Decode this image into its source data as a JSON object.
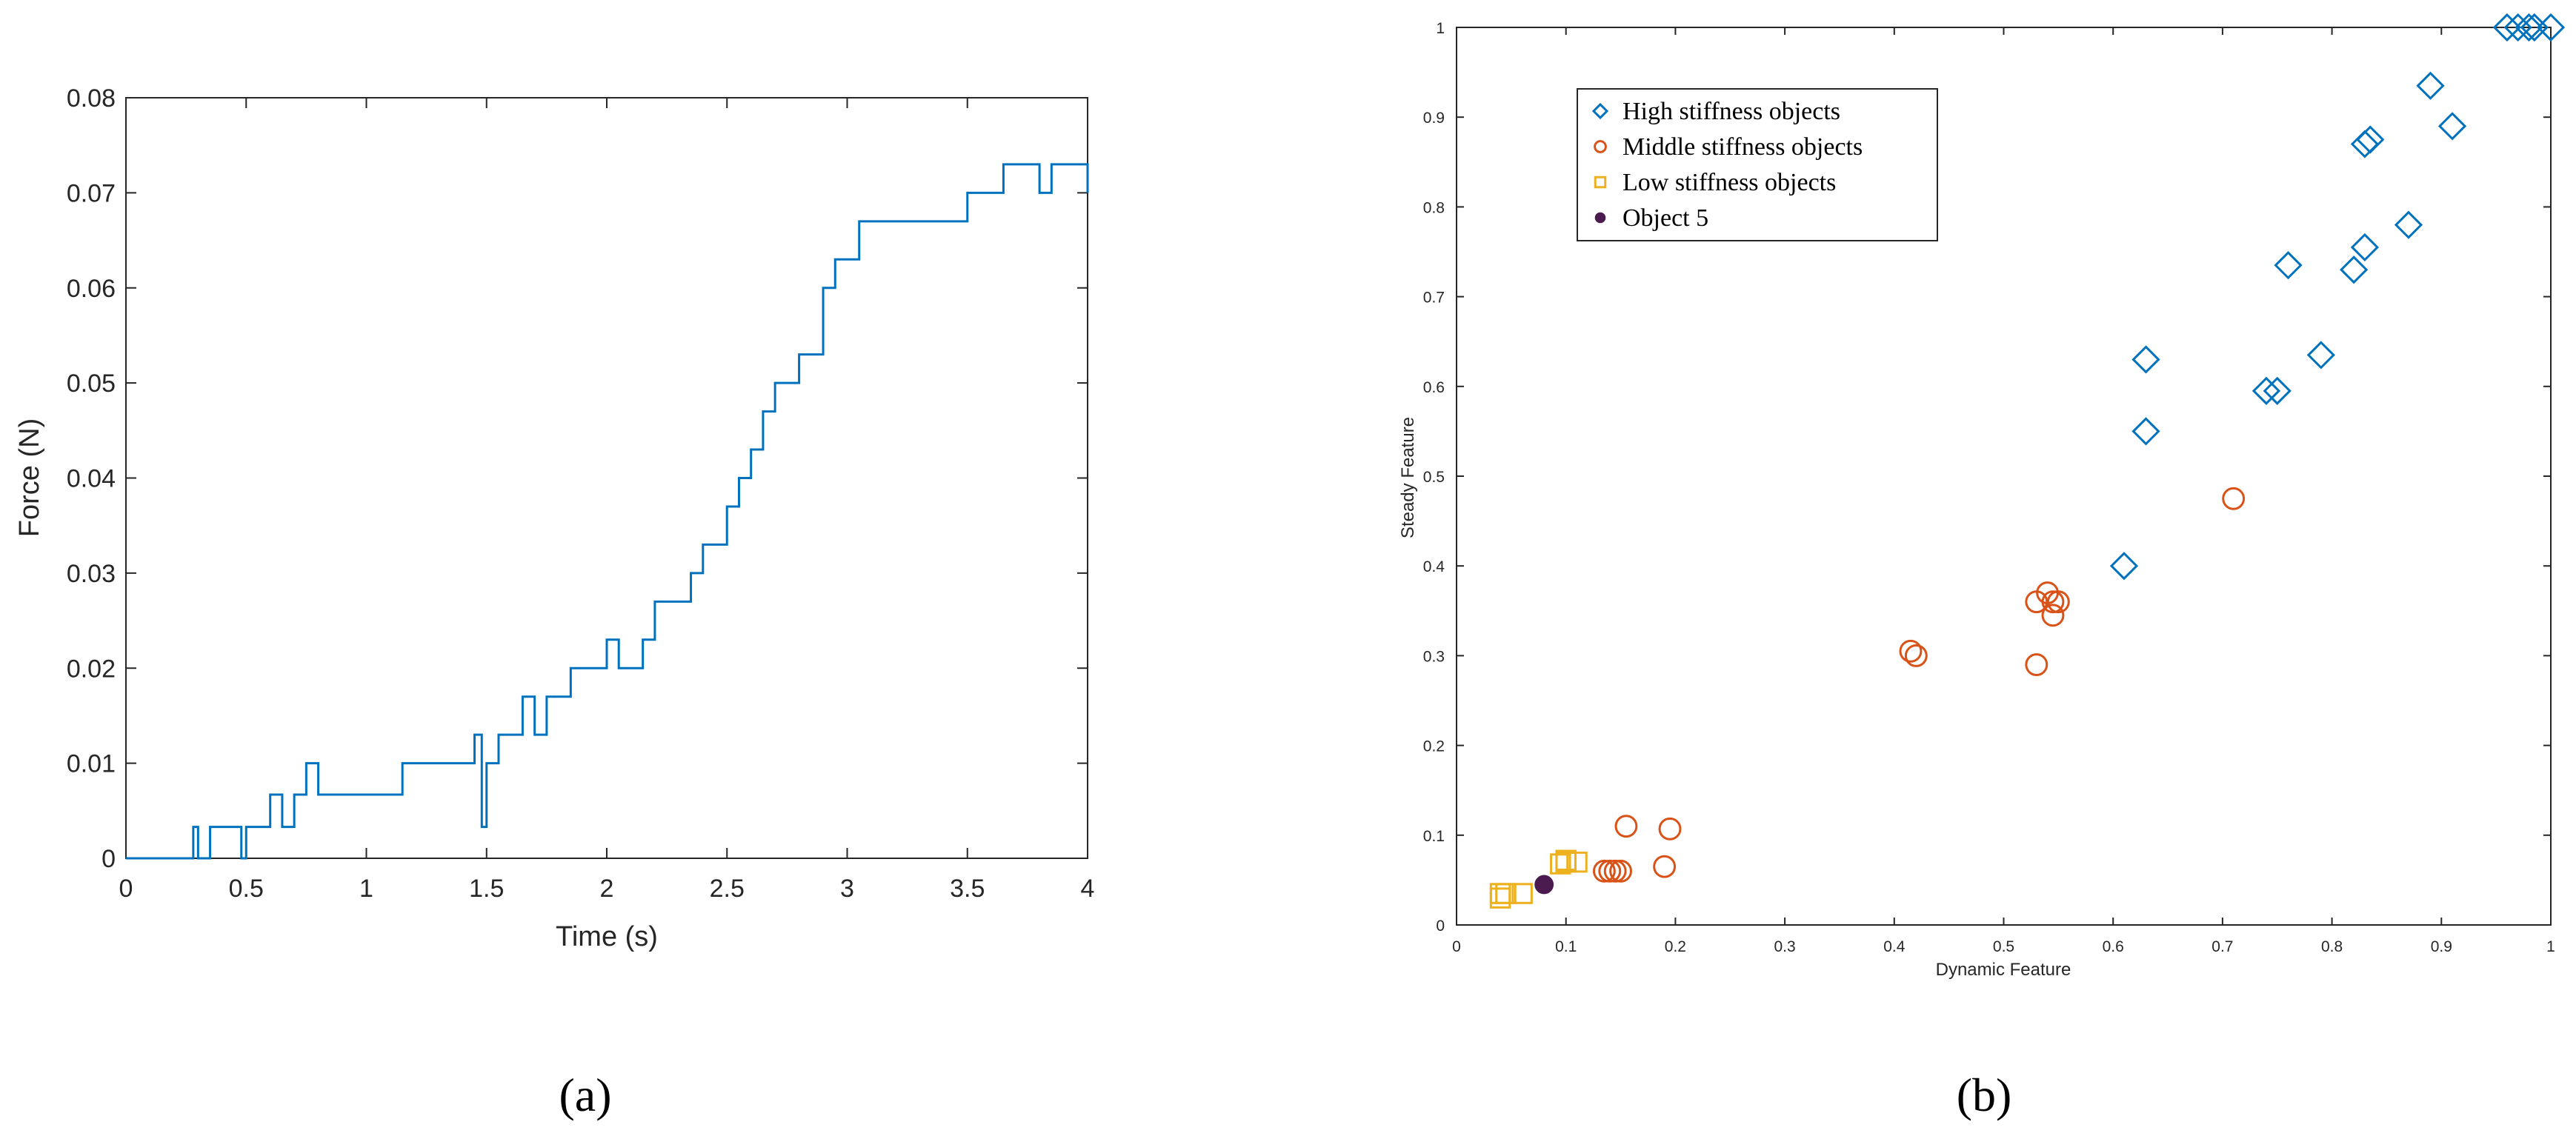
{
  "chart_data": [
    {
      "type": "line",
      "caption": "(a)",
      "xlabel": "Time (s)",
      "ylabel": "Force (N)",
      "xlim": [
        0,
        4
      ],
      "ylim": [
        0,
        0.08
      ],
      "xticks": [
        "0",
        "0.5",
        "1",
        "1.5",
        "2",
        "2.5",
        "3",
        "3.5",
        "4"
      ],
      "yticks": [
        "0",
        "0.01",
        "0.02",
        "0.03",
        "0.04",
        "0.05",
        "0.06",
        "0.07",
        "0.08"
      ],
      "grid": false,
      "color": "#0072BD",
      "series": [
        {
          "x": [
            0.0,
            0.26,
            0.28,
            0.3,
            0.33,
            0.35,
            0.37,
            0.4,
            0.45,
            0.48,
            0.5,
            0.55,
            0.6,
            0.65,
            0.7,
            0.75,
            0.8,
            0.85,
            0.9,
            0.95,
            1.0,
            1.05,
            1.1,
            1.15,
            1.2,
            1.25,
            1.3,
            1.35,
            1.4,
            1.45,
            1.48,
            1.5,
            1.55,
            1.6,
            1.65,
            1.7,
            1.75,
            1.8,
            1.85,
            1.9,
            1.95,
            2.0,
            2.05,
            2.1,
            2.15,
            2.2,
            2.25,
            2.3,
            2.35,
            2.4,
            2.45,
            2.5,
            2.55,
            2.6,
            2.65,
            2.7,
            2.75,
            2.8,
            2.85,
            2.9,
            2.95,
            3.0,
            3.05,
            3.1,
            3.15,
            3.2,
            3.25,
            3.3,
            3.35,
            3.4,
            3.45,
            3.5,
            3.55,
            3.6,
            3.65,
            3.7,
            3.75,
            3.8,
            3.85,
            3.9,
            3.95,
            4.0
          ],
          "y": [
            0.0,
            0.0,
            0.0033,
            0.0,
            0.0,
            0.0033,
            0.0033,
            0.0033,
            0.0033,
            0.0,
            0.0033,
            0.0033,
            0.0067,
            0.0033,
            0.0067,
            0.01,
            0.0067,
            0.0067,
            0.0067,
            0.0067,
            0.0067,
            0.0067,
            0.0067,
            0.01,
            0.01,
            0.01,
            0.01,
            0.01,
            0.01,
            0.013,
            0.0033,
            0.01,
            0.013,
            0.013,
            0.017,
            0.013,
            0.017,
            0.017,
            0.02,
            0.02,
            0.02,
            0.023,
            0.02,
            0.02,
            0.023,
            0.027,
            0.027,
            0.027,
            0.03,
            0.033,
            0.033,
            0.037,
            0.04,
            0.043,
            0.047,
            0.05,
            0.05,
            0.053,
            0.053,
            0.06,
            0.063,
            0.063,
            0.067,
            0.067,
            0.067,
            0.067,
            0.067,
            0.067,
            0.067,
            0.067,
            0.067,
            0.07,
            0.07,
            0.07,
            0.073,
            0.073,
            0.073,
            0.07,
            0.073,
            0.073,
            0.073,
            0.07
          ]
        }
      ]
    },
    {
      "type": "scatter",
      "caption": "(b)",
      "xlabel": "Dynamic Feature",
      "ylabel": "Steady Feature",
      "xlim": [
        0,
        1
      ],
      "ylim": [
        0,
        1
      ],
      "xticks": [
        "0",
        "0.1",
        "0.2",
        "0.3",
        "0.4",
        "0.5",
        "0.6",
        "0.7",
        "0.8",
        "0.9",
        "1"
      ],
      "yticks": [
        "0",
        "0.1",
        "0.2",
        "0.3",
        "0.4",
        "0.5",
        "0.6",
        "0.7",
        "0.8",
        "0.9",
        "1"
      ],
      "grid": false,
      "legend_position": "top-left",
      "series": [
        {
          "name": "High stiffness objects",
          "marker": "diamond",
          "color": "#0072BD",
          "points": [
            [
              0.61,
              0.4
            ],
            [
              0.63,
              0.55
            ],
            [
              0.63,
              0.63
            ],
            [
              0.74,
              0.595
            ],
            [
              0.75,
              0.595
            ],
            [
              0.76,
              0.735
            ],
            [
              0.79,
              0.635
            ],
            [
              0.82,
              0.73
            ],
            [
              0.83,
              0.755
            ],
            [
              0.83,
              0.87
            ],
            [
              0.835,
              0.875
            ],
            [
              0.87,
              0.78
            ],
            [
              0.89,
              0.935
            ],
            [
              0.91,
              0.89
            ],
            [
              0.96,
              1.0
            ],
            [
              0.97,
              1.0
            ],
            [
              0.98,
              1.0
            ],
            [
              0.985,
              1.0
            ],
            [
              1.0,
              1.0
            ]
          ]
        },
        {
          "name": "Middle stiffness objects",
          "marker": "circle",
          "color": "#D95319",
          "points": [
            [
              0.135,
              0.06
            ],
            [
              0.14,
              0.06
            ],
            [
              0.145,
              0.06
            ],
            [
              0.15,
              0.06
            ],
            [
              0.155,
              0.11
            ],
            [
              0.19,
              0.065
            ],
            [
              0.195,
              0.107
            ],
            [
              0.415,
              0.305
            ],
            [
              0.42,
              0.3
            ],
            [
              0.53,
              0.29
            ],
            [
              0.53,
              0.36
            ],
            [
              0.54,
              0.37
            ],
            [
              0.545,
              0.345
            ],
            [
              0.545,
              0.36
            ],
            [
              0.55,
              0.36
            ],
            [
              0.71,
              0.475
            ]
          ]
        },
        {
          "name": "Low stiffness objects",
          "marker": "square",
          "color": "#EDB120",
          "points": [
            [
              0.04,
              0.03
            ],
            [
              0.04,
              0.035
            ],
            [
              0.045,
              0.035
            ],
            [
              0.06,
              0.035
            ],
            [
              0.095,
              0.068
            ],
            [
              0.1,
              0.07
            ],
            [
              0.1,
              0.072
            ],
            [
              0.11,
              0.07
            ]
          ]
        },
        {
          "name": "Object 5",
          "marker": "filled-circle",
          "color": "#4B1A4E",
          "points": [
            [
              0.08,
              0.045
            ]
          ]
        }
      ]
    }
  ]
}
